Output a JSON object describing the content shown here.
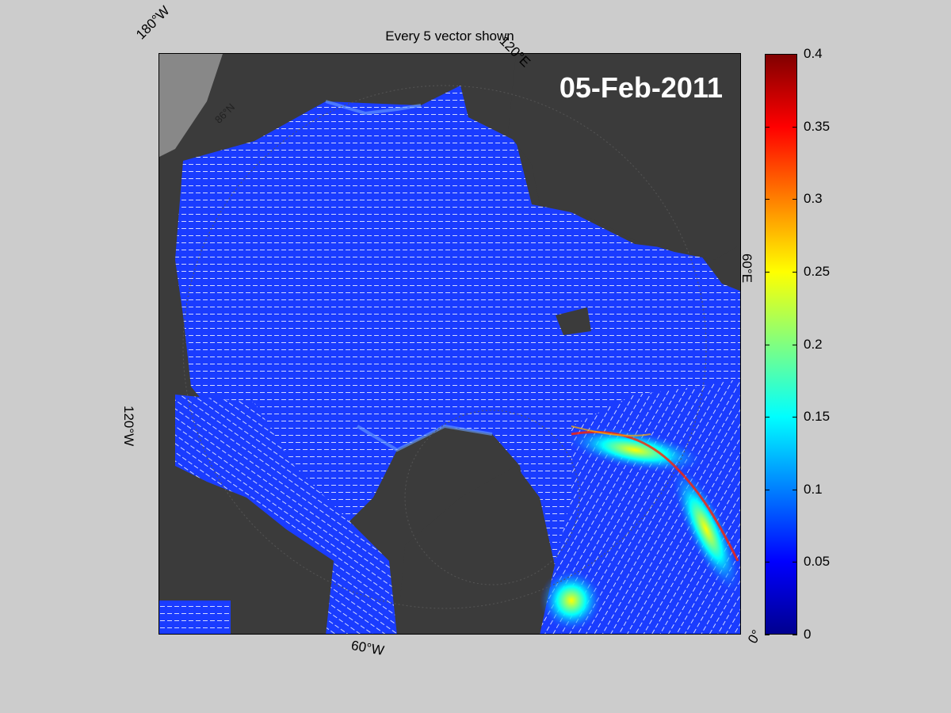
{
  "title": "Every 5 vector shown",
  "date": "05-Feb-2011",
  "longitude_labels": {
    "w180": "180°W",
    "e120": "120°E",
    "e60": "60°E",
    "w120": "120°W",
    "w60": "60°W",
    "zero": "0°"
  },
  "latitude_label": "86°N",
  "colorbar": {
    "colormap": "jet",
    "min": 0,
    "max": 0.4,
    "ticks": [
      "0",
      "0.05",
      "0.1",
      "0.15",
      "0.2",
      "0.25",
      "0.3",
      "0.35",
      "0.4"
    ],
    "tick_values": [
      0,
      0.05,
      0.1,
      0.15,
      0.2,
      0.25,
      0.3,
      0.35,
      0.4
    ]
  },
  "colors": {
    "background": "#cccccc",
    "land": "#3b3b3b",
    "ocean_low": "#1a3cff",
    "vector": "#ffffff"
  }
}
